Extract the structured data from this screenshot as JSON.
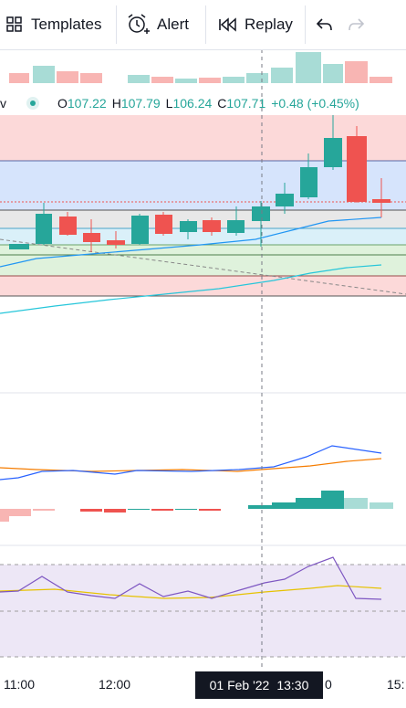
{
  "toolbar": {
    "templates_label": "Templates",
    "alert_label": "Alert",
    "replay_label": "Replay"
  },
  "legend": {
    "open_label": "O",
    "open": "107.22",
    "high_label": "H",
    "high": "107.79",
    "low_label": "L",
    "low": "106.24",
    "close_label": "C",
    "close": "107.71",
    "change": "+0.48 (+0.45%)",
    "partial": "v"
  },
  "xaxis": {
    "t1": "11:00",
    "t2": "12:00",
    "t3": "0",
    "t4": "15:",
    "cross_date": "01 Feb '22",
    "cross_time": "13:30"
  },
  "colors": {
    "up": "#26a69a",
    "down": "#ef5350",
    "macd": "#2962ff",
    "signal": "#f57c00",
    "rsi": "#7e57c2"
  },
  "icons": [
    "templates-icon",
    "alert-icon",
    "replay-icon",
    "undo-icon",
    "redo-icon"
  ]
}
